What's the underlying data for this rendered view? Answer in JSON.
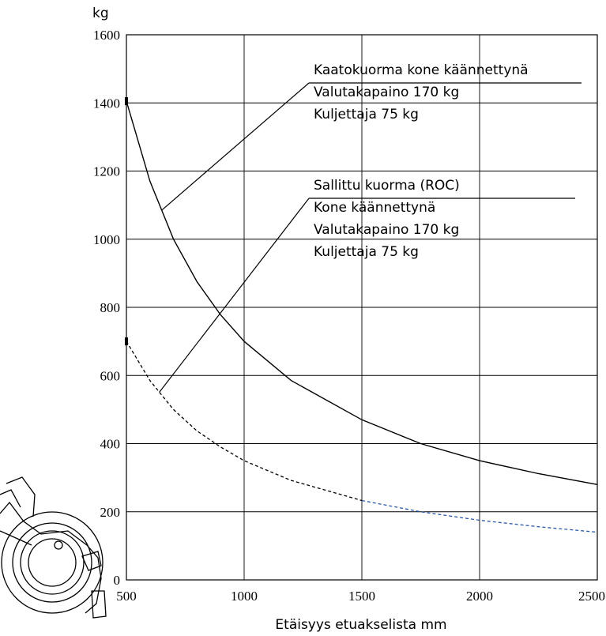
{
  "chart_data": {
    "type": "line",
    "ylabel": "kg",
    "xlabel": "Etäisyys etuakselista mm",
    "xlim": [
      500,
      2500
    ],
    "ylim": [
      0,
      1600
    ],
    "x_ticks": [
      "500",
      "1000",
      "1500",
      "2000",
      "2500"
    ],
    "y_ticks": [
      "0",
      "200",
      "400",
      "600",
      "800",
      "1000",
      "1200",
      "1400",
      "1600"
    ],
    "grid": true,
    "series": [
      {
        "name": "Kaatokuorma kone käännettynä",
        "style": "solid",
        "color": "#000000",
        "x": [
          500,
          600,
          700,
          800,
          900,
          1000,
          1200,
          1500,
          1750,
          2000,
          2250,
          2500
        ],
        "y": [
          1405,
          1170,
          1000,
          875,
          778,
          700,
          585,
          470,
          400,
          350,
          312,
          280
        ]
      },
      {
        "name": "Sallittu kuorma (ROC)",
        "style": "dashed",
        "color": "#000000",
        "color_far": "#2a5aa8",
        "x": [
          500,
          600,
          700,
          800,
          900,
          1000,
          1200,
          1500,
          1750,
          2000,
          2250,
          2500
        ],
        "y": [
          700,
          585,
          500,
          437,
          390,
          350,
          292,
          233,
          200,
          175,
          156,
          140
        ]
      }
    ],
    "annotations": [
      {
        "lines": [
          "Kaatokuorma kone käännettynä",
          "Valutakapaino 170 kg",
          "Kuljettaja 75 kg"
        ],
        "points_to_x": 650,
        "points_to_series": 0
      },
      {
        "lines": [
          "Sallittu kuorma (ROC)",
          "Kone käännettynä",
          "Valutakapaino 170 kg",
          "Kuljettaja 75 kg"
        ],
        "points_to_x": 640,
        "points_to_series": 1
      }
    ]
  },
  "illustration": {
    "icon": "loader-wheel-icon"
  }
}
